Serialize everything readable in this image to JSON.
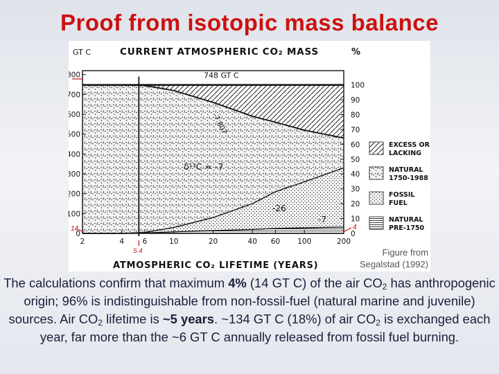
{
  "slide": {
    "title": "Proof from isotopic mass balance",
    "figure_credit_line1": "Figure from",
    "figure_credit_line2": "Segalstad (1992)",
    "caption": {
      "s1": "The calculations confirm that maximum ",
      "b1": "4%",
      "s2": " (14 GT C) of the air CO",
      "sub1": "2",
      "s3": " has anthropogenic origin; 96% is indistinguishable from non-fossil-fuel (natural marine and juvenile) sources. Air CO",
      "sub2": "2",
      "s4": " lifetime is ",
      "b2": "~5 years",
      "s5": ". ~134 GT C (18%) of air CO",
      "sub3": "2",
      "s6": " is exchanged each year, far more than the ~6 GT C annually released from fossil fuel burning."
    }
  },
  "chart_data": {
    "type": "area",
    "title": "CURRENT ATMOSPHERIC CO₂ MASS",
    "xlabel": "ATMOSPHERIC CO₂ LIFETIME (YEARS)",
    "ylabel_left": "GT C",
    "ylabel_right": "%",
    "x_ticks": [
      "2",
      "4",
      "6",
      "10",
      "20",
      "40",
      "60",
      "100",
      "200"
    ],
    "y_left_ticks": [
      "0",
      "100",
      "200",
      "300",
      "400",
      "500",
      "600",
      "700",
      "800"
    ],
    "y_right_ticks": [
      "0",
      "10",
      "20",
      "30",
      "40",
      "50",
      "60",
      "70",
      "80",
      "90",
      "100"
    ],
    "ylim_left": [
      0,
      820
    ],
    "ylim_right": [
      0,
      109.6
    ],
    "x_scale": "log",
    "reference_line": {
      "value": 748,
      "label": "748 GT C"
    },
    "markers": {
      "x_lifetime": "5.4",
      "y_left": "14",
      "y_right": "4"
    },
    "curves": [
      {
        "label": "-7.807",
        "x": [
          2,
          4,
          6,
          10,
          20,
          40,
          60,
          100,
          200
        ],
        "y": [
          748,
          748,
          745,
          720,
          660,
          590,
          560,
          520,
          480
        ]
      },
      {
        "label": "-26",
        "x": [
          2,
          4,
          6,
          10,
          20,
          40,
          60,
          100,
          200
        ],
        "y": [
          0,
          0,
          5,
          30,
          80,
          150,
          210,
          260,
          330
        ]
      },
      {
        "label": "-7",
        "x": [
          2,
          4,
          6,
          10,
          20,
          40,
          60,
          100,
          200
        ],
        "y": [
          0,
          0,
          2,
          8,
          14,
          20,
          25,
          28,
          32
        ]
      }
    ],
    "annotations": [
      "δ¹³C = -7"
    ],
    "legend": {
      "placement": "right",
      "entries": [
        "EXCESS OR LACKING",
        "NATURAL 1750-1988",
        "FOSSIL FUEL",
        "NATURAL PRE-1750"
      ]
    }
  }
}
